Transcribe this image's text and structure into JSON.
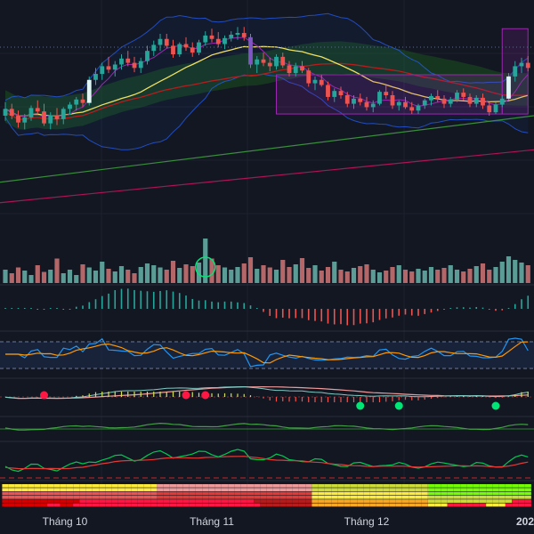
{
  "chart_data": {
    "type": "candlestick",
    "x_axis": {
      "tick_labels": [
        "Tháng 10",
        "Tháng 11",
        "Tháng 12",
        "202"
      ]
    },
    "colors": {
      "background": "#131722",
      "up": "#26a69a",
      "down": "#ef5350",
      "volume_up": "#5b9c96",
      "volume_down": "#b36768",
      "bollinger": "#2962ff",
      "ma_fast": "#9c27b0",
      "ma_mid": "#f0e060",
      "ma_long": "#b71c1c",
      "ma_longer": "#388e3c",
      "ma_longest": "#ad1457",
      "cloud": "#1b5e20",
      "range_box": "#9c27b0",
      "rsi_blue": "#2196f3",
      "rsi_orange": "#ff9800",
      "signal_green": "#00e676",
      "signal_red": "#ff1744"
    },
    "candles": [
      [
        30.0,
        31.6,
        29.4,
        30.8
      ],
      [
        30.8,
        31.4,
        29.6,
        30.0
      ],
      [
        30.0,
        30.6,
        28.6,
        29.2
      ],
      [
        29.2,
        30.2,
        28.4,
        29.8
      ],
      [
        29.8,
        31.2,
        29.4,
        30.9
      ],
      [
        30.9,
        31.8,
        30.2,
        30.5
      ],
      [
        30.5,
        31.4,
        28.8,
        29.1
      ],
      [
        29.1,
        30.4,
        28.4,
        30.0
      ],
      [
        30.0,
        30.9,
        28.9,
        29.6
      ],
      [
        29.6,
        31.0,
        29.0,
        30.8
      ],
      [
        30.8,
        31.6,
        30.1,
        31.3
      ],
      [
        31.3,
        32.2,
        30.6,
        31.9
      ],
      [
        31.9,
        32.6,
        31.0,
        31.5
      ],
      [
        31.5,
        34.6,
        31.2,
        34.2
      ],
      [
        34.2,
        35.6,
        33.6,
        34.9
      ],
      [
        34.9,
        36.2,
        34.2,
        35.8
      ],
      [
        35.8,
        36.9,
        35.0,
        35.4
      ],
      [
        35.4,
        36.4,
        34.6,
        36.0
      ],
      [
        36.0,
        37.2,
        35.4,
        36.7
      ],
      [
        36.7,
        37.6,
        35.8,
        36.2
      ],
      [
        36.2,
        36.9,
        35.1,
        35.6
      ],
      [
        35.6,
        36.8,
        35.0,
        36.4
      ],
      [
        36.4,
        38.2,
        36.0,
        37.6
      ],
      [
        37.6,
        38.8,
        37.0,
        38.3
      ],
      [
        38.3,
        39.6,
        37.6,
        39.0
      ],
      [
        39.0,
        39.6,
        37.9,
        38.2
      ],
      [
        38.2,
        38.9,
        36.8,
        37.2
      ],
      [
        37.2,
        38.6,
        36.9,
        38.4
      ],
      [
        38.4,
        39.2,
        37.6,
        38.0
      ],
      [
        38.0,
        38.6,
        36.9,
        37.4
      ],
      [
        37.4,
        38.9,
        37.1,
        38.6
      ],
      [
        38.6,
        39.9,
        38.2,
        39.4
      ],
      [
        39.4,
        40.2,
        38.6,
        39.0
      ],
      [
        39.0,
        39.8,
        38.0,
        38.4
      ],
      [
        38.4,
        39.4,
        37.8,
        39.1
      ],
      [
        39.1,
        39.9,
        38.7,
        39.5
      ],
      [
        39.5,
        40.4,
        38.9,
        39.7
      ],
      [
        39.7,
        40.4,
        38.8,
        39.2
      ],
      [
        39.2,
        39.6,
        35.6,
        36.0
      ],
      [
        36.0,
        37.0,
        35.0,
        36.6
      ],
      [
        36.6,
        37.4,
        35.8,
        36.2
      ],
      [
        36.2,
        36.8,
        35.2,
        35.8
      ],
      [
        35.8,
        37.2,
        35.4,
        36.9
      ],
      [
        36.9,
        37.4,
        35.6,
        35.9
      ],
      [
        35.9,
        36.4,
        34.6,
        35.0
      ],
      [
        35.0,
        36.2,
        34.6,
        35.8
      ],
      [
        35.8,
        36.4,
        35.0,
        35.3
      ],
      [
        35.3,
        35.6,
        33.4,
        33.8
      ],
      [
        33.8,
        34.6,
        33.0,
        34.2
      ],
      [
        34.2,
        34.8,
        33.4,
        33.6
      ],
      [
        33.6,
        34.0,
        31.8,
        32.2
      ],
      [
        32.2,
        33.2,
        31.6,
        32.9
      ],
      [
        32.9,
        33.4,
        32.0,
        32.4
      ],
      [
        32.4,
        32.8,
        31.0,
        31.4
      ],
      [
        31.4,
        32.4,
        30.8,
        32.0
      ],
      [
        32.0,
        32.6,
        31.2,
        31.6
      ],
      [
        31.6,
        32.2,
        30.6,
        31.0
      ],
      [
        31.0,
        31.8,
        30.4,
        31.4
      ],
      [
        31.4,
        33.0,
        31.2,
        32.8
      ],
      [
        32.8,
        33.6,
        32.0,
        32.4
      ],
      [
        32.4,
        32.9,
        30.8,
        31.2
      ],
      [
        31.2,
        31.8,
        30.6,
        31.6
      ],
      [
        31.6,
        32.2,
        30.8,
        31.0
      ],
      [
        31.0,
        31.6,
        30.2,
        30.6
      ],
      [
        30.6,
        31.4,
        30.2,
        31.2
      ],
      [
        31.2,
        32.0,
        30.8,
        31.8
      ],
      [
        31.8,
        32.6,
        31.2,
        32.3
      ],
      [
        32.3,
        33.0,
        31.6,
        32.0
      ],
      [
        32.0,
        32.4,
        30.9,
        31.4
      ],
      [
        31.4,
        32.2,
        31.0,
        31.9
      ],
      [
        31.9,
        33.0,
        31.6,
        32.7
      ],
      [
        32.7,
        33.2,
        31.8,
        32.2
      ],
      [
        32.2,
        32.6,
        31.0,
        31.4
      ],
      [
        31.4,
        32.4,
        31.0,
        32.1
      ],
      [
        32.1,
        32.6,
        30.8,
        31.2
      ],
      [
        31.2,
        31.6,
        30.0,
        30.4
      ],
      [
        30.4,
        31.6,
        30.2,
        31.3
      ],
      [
        31.3,
        32.4,
        31.0,
        32.0
      ],
      [
        32.0,
        35.0,
        31.8,
        34.6
      ],
      [
        34.6,
        36.4,
        34.0,
        35.8
      ],
      [
        35.8,
        36.8,
        35.0,
        36.2
      ],
      [
        36.2,
        37.0,
        35.2,
        35.6
      ]
    ],
    "volume": [
      0.3,
      0.22,
      0.35,
      0.28,
      0.18,
      0.4,
      0.25,
      0.3,
      0.55,
      0.22,
      0.3,
      0.18,
      0.42,
      0.35,
      0.28,
      0.48,
      0.32,
      0.26,
      0.38,
      0.3,
      0.22,
      0.36,
      0.44,
      0.4,
      0.35,
      0.3,
      0.5,
      0.34,
      0.42,
      0.38,
      0.46,
      1.0,
      0.55,
      0.4,
      0.35,
      0.3,
      0.36,
      0.44,
      0.58,
      0.32,
      0.4,
      0.35,
      0.3,
      0.52,
      0.36,
      0.42,
      0.56,
      0.34,
      0.4,
      0.28,
      0.36,
      0.48,
      0.3,
      0.26,
      0.34,
      0.38,
      0.42,
      0.3,
      0.24,
      0.28,
      0.36,
      0.4,
      0.3,
      0.26,
      0.32,
      0.28,
      0.36,
      0.3,
      0.34,
      0.4,
      0.3,
      0.26,
      0.32,
      0.38,
      0.44,
      0.3,
      0.36,
      0.48,
      0.6,
      0.52,
      0.46,
      0.4
    ],
    "signal_dots": [
      {
        "index": 6,
        "color": "red"
      },
      {
        "index": 28,
        "color": "red"
      },
      {
        "index": 31,
        "color": "red"
      },
      {
        "index": 55,
        "color": "green"
      },
      {
        "index": 61,
        "color": "green"
      },
      {
        "index": 76,
        "color": "green"
      }
    ],
    "range_boxes": [
      {
        "start_index": 42,
        "end_index": 77,
        "high": 34.8,
        "low": 30.2
      },
      {
        "start_index": 77,
        "end_index": 81,
        "high": 40.2,
        "low": 30.2
      }
    ],
    "volume_highlight_index": 31
  }
}
